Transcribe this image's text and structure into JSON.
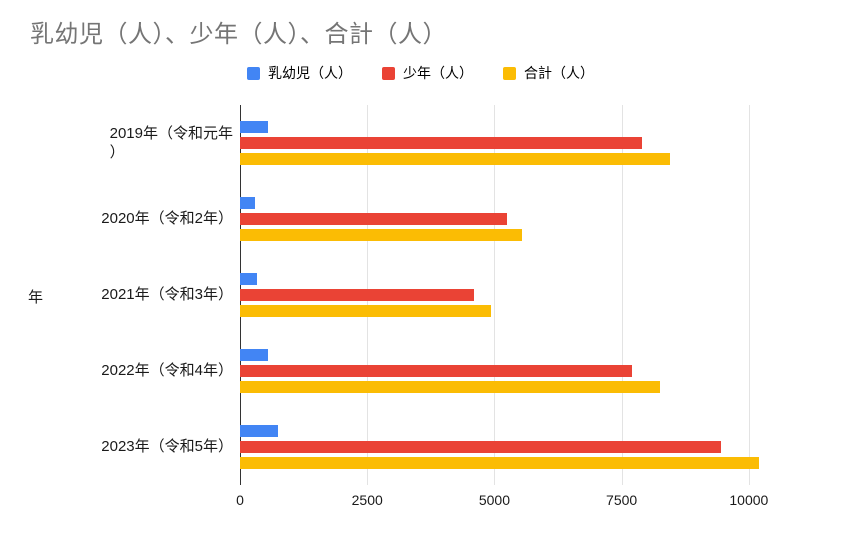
{
  "title": "乳幼児（人）、少年（人）、合計（人）",
  "colors": {
    "title_text": "#757575",
    "gridline": "#e3e3e3",
    "axis_baseline": "#333333",
    "label_text": "#1a1a1a",
    "series_blue": "#4285F4",
    "series_red": "#EA4335",
    "series_yellow": "#FBBC04"
  },
  "chart_data": {
    "type": "bar",
    "orientation": "horizontal",
    "title": "乳幼児（人）、少年（人）、合計（人）",
    "xlabel": "",
    "ylabel": "年",
    "xlim": [
      0,
      11300
    ],
    "x_ticks": [
      0,
      2500,
      5000,
      7500,
      10000
    ],
    "grid": true,
    "legend_position": "top-center",
    "categories": [
      "2019年（令和元年\n）",
      "2020年（令和2年）",
      "2021年（令和3年）",
      "2022年（令和4年）",
      "2023年（令和5年）"
    ],
    "series": [
      {
        "key": "infants",
        "name": "乳幼児（人）",
        "color": "#4285F4",
        "values": [
          550,
          300,
          330,
          560,
          750
        ]
      },
      {
        "key": "juveniles",
        "name": "少年（人）",
        "color": "#EA4335",
        "values": [
          7900,
          5250,
          4600,
          7700,
          9450
        ]
      },
      {
        "key": "total",
        "name": "合計（人）",
        "color": "#FBBC04",
        "values": [
          8450,
          5550,
          4930,
          8260,
          10200
        ]
      }
    ]
  }
}
